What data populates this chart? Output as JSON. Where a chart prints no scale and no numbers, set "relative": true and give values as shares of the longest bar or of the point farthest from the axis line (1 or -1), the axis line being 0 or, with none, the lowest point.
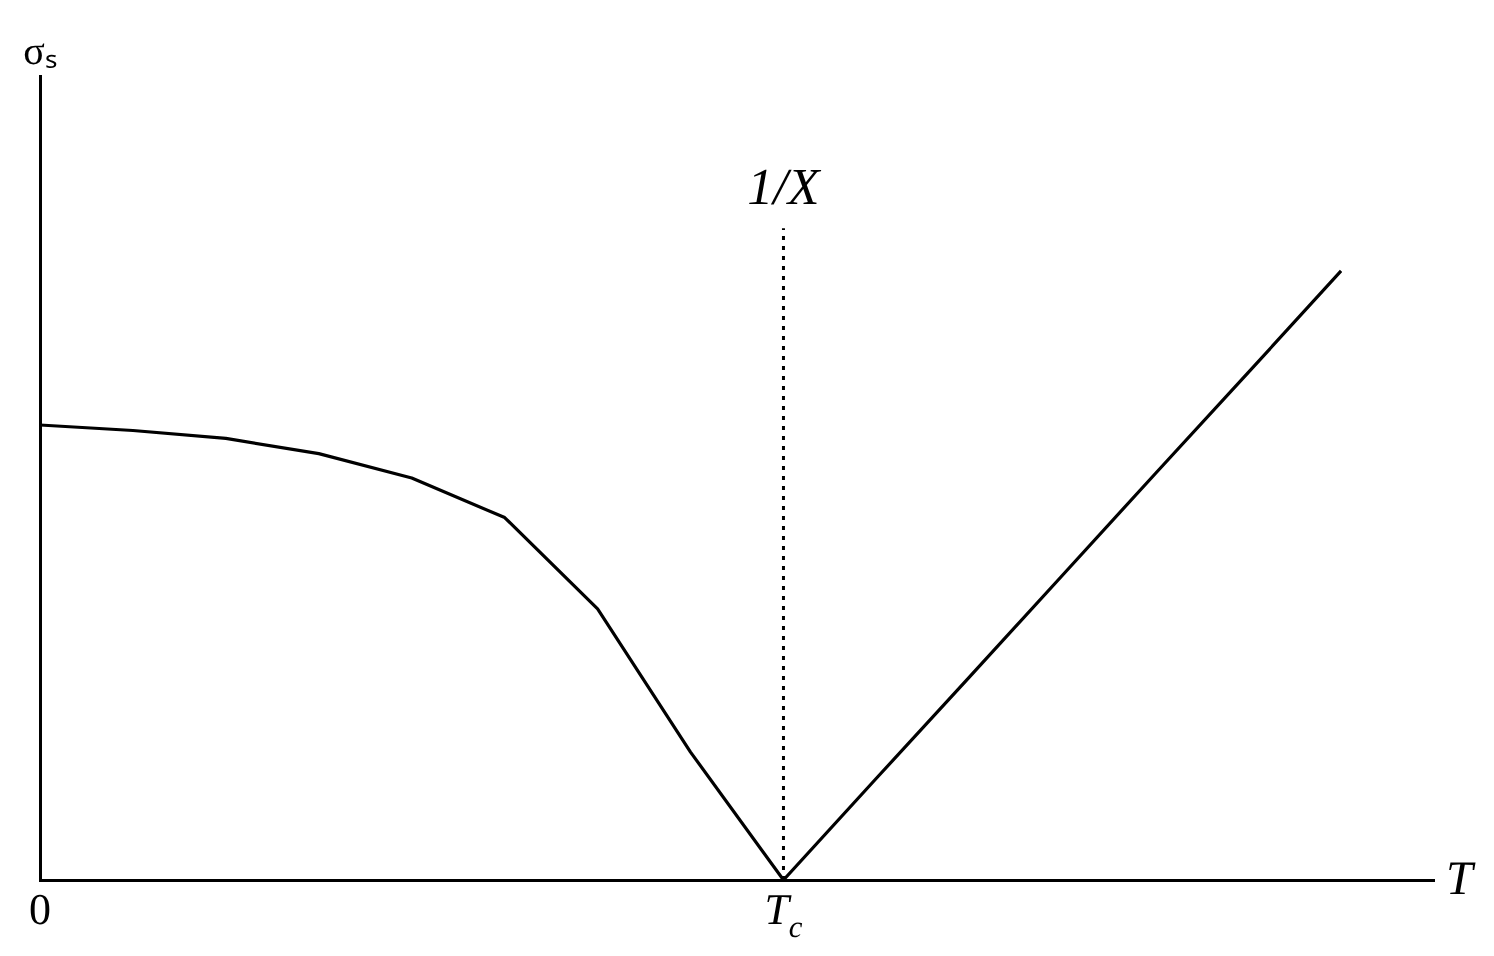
{
  "chart_data": {
    "type": "line",
    "relative": true,
    "xlabel": "T",
    "ylabel": "σₛ",
    "categories": [
      "0",
      null,
      null,
      null,
      null,
      null,
      null,
      null,
      "T$_{c}$",
      null,
      null,
      null,
      null,
      null,
      null,
      null
    ],
    "values": [
      0.747,
      0.738,
      0.725,
      0.7,
      0.66,
      0.595,
      0.445,
      0.21,
      0,
      0.167,
      0.333,
      0.5,
      0.667,
      0.833,
      1,
      null
    ],
    "color": "#000000",
    "ref_lines": [
      {
        "axis": "x",
        "value": "T$_{c}$",
        "label": "1/X",
        "line_style": "dotted"
      }
    ],
    "grid": false,
    "legend": false,
    "marker": "none",
    "line_style": "solid"
  }
}
